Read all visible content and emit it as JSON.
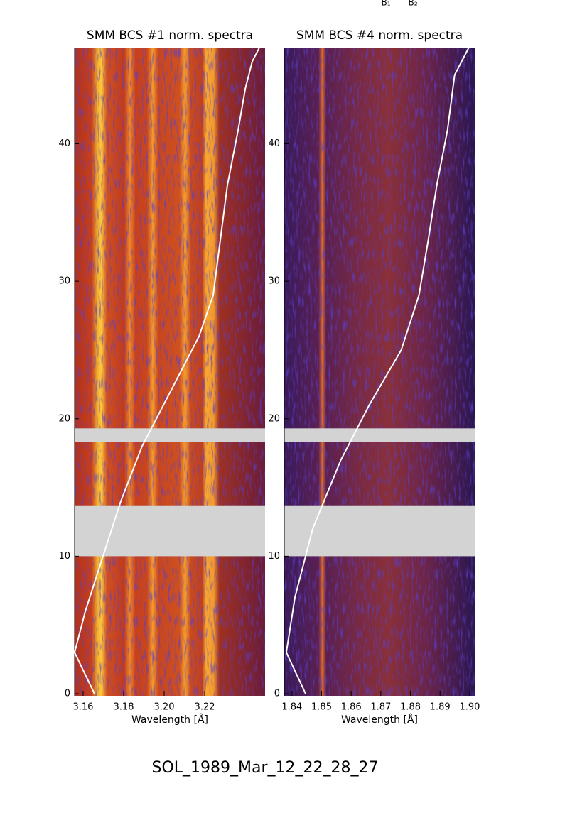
{
  "chart_data": [
    {
      "type": "spectrogram",
      "title": "SMM BCS #1 norm. spectra",
      "xlabel": "Wavelength [Å]",
      "xlim": [
        3.1558,
        3.2498
      ],
      "ylim": [
        0,
        47
      ],
      "xticks": [
        3.16,
        3.18,
        {
          "value": 3.2,
          "label": "3.20"
        },
        3.22
      ],
      "yticks": [
        0,
        10,
        20,
        30,
        40
      ],
      "gaps": [
        [
          10,
          13.7
        ],
        [
          18.3,
          19.3
        ]
      ],
      "gap_color": "#d3d3d3",
      "series": [
        {
          "color": "#ffffff",
          "x": [
            3.1656,
            3.1558,
            3.1611,
            3.1698,
            3.1786,
            3.1891,
            3.2032,
            3.2172,
            3.2242,
            3.2277,
            3.2312,
            3.2365,
            3.24,
            3.2435,
            3.247
          ],
          "values": [
            0,
            3,
            6,
            10,
            14,
            18,
            22,
            26,
            29,
            33,
            37,
            41,
            44,
            46,
            47
          ]
        }
      ]
    },
    {
      "type": "spectrogram",
      "title": "SMM BCS #4 norm. spectra",
      "xlabel": "Wavelength [Å]",
      "xlim": [
        1.8374,
        1.9017
      ],
      "ylim": [
        0,
        47
      ],
      "xticks": [
        1.84,
        1.85,
        1.86,
        1.87,
        1.88,
        1.89,
        {
          "value": 1.9,
          "label": "1.90"
        }
      ],
      "yticks": [
        0,
        10,
        20,
        30,
        40
      ],
      "gaps": [
        [
          10,
          13.7
        ],
        [
          18.3,
          19.3
        ]
      ],
      "gap_color": "#d3d3d3",
      "series": [
        {
          "color": "#ffffff",
          "x": [
            1.8446,
            1.8381,
            1.841,
            1.847,
            1.8565,
            1.8661,
            1.8769,
            1.8829,
            1.886,
            1.8889,
            1.8925,
            1.8949,
            1.8997
          ],
          "values": [
            0,
            3,
            7,
            12,
            17,
            21,
            25,
            29,
            33,
            37,
            41,
            45,
            47
          ]
        }
      ]
    }
  ],
  "annotations": [
    "B₁",
    "B₂"
  ],
  "footer": "SOL_1989_Mar_12_22_28_27"
}
